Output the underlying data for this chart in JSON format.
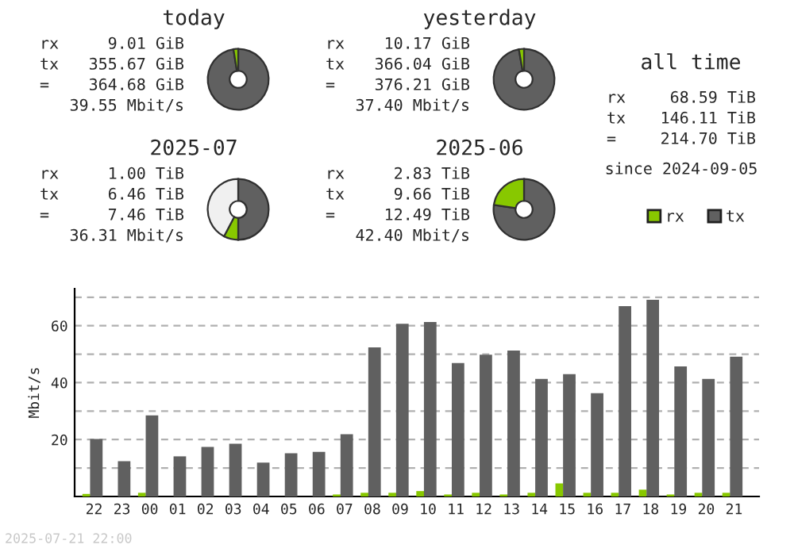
{
  "chart_data": [
    {
      "type": "donut",
      "title": "today",
      "categories": [
        null,
        null
      ],
      "values": [
        97.53,
        2.47
      ],
      "colors": [
        "#606060",
        "#88c800"
      ],
      "annotations": [
        "rx",
        "9.01 GiB",
        "tx",
        "355.67 GiB",
        "=",
        "364.68 GiB",
        "39.55 Mbit/s"
      ]
    },
    {
      "type": "donut",
      "title": "yesterday",
      "categories": [
        null,
        null
      ],
      "values": [
        97.3,
        2.7
      ],
      "colors": [
        "#606060",
        "#88c800"
      ],
      "annotations": [
        "rx",
        "10.17 GiB",
        "tx",
        "366.04 GiB",
        "=",
        "376.21 GiB",
        "37.40 Mbit/s"
      ]
    },
    {
      "type": "other",
      "title": "all time",
      "annotations": [
        "rx",
        "68.59 TiB",
        "tx",
        "146.11 TiB",
        "=",
        "214.70 TiB",
        "since 2024-09-05"
      ]
    },
    {
      "type": "donut",
      "title": "2025-07",
      "categories": [
        null,
        null,
        null
      ],
      "values": [
        50.0,
        7.7,
        42.3
      ],
      "colors": [
        "#606060",
        "#88c800",
        "#f0f0f0"
      ],
      "annotations": [
        "rx",
        "1.00 TiB",
        "tx",
        "6.46 TiB",
        "=",
        "7.46 TiB",
        "36.31 Mbit/s"
      ]
    },
    {
      "type": "donut",
      "title": "2025-06",
      "categories": [
        null,
        null
      ],
      "values": [
        77.34,
        22.66
      ],
      "colors": [
        "#606060",
        "#88c800"
      ],
      "annotations": [
        "rx",
        "2.83 TiB",
        "tx",
        "9.66 TiB",
        "=",
        "12.49 TiB",
        "42.40 Mbit/s"
      ]
    },
    {
      "type": "bar",
      "ylabel": "Mbit/s",
      "categories": [
        "22",
        "23",
        "00",
        "01",
        "02",
        "03",
        "04",
        "05",
        "06",
        "07",
        "08",
        "09",
        "10",
        "11",
        "12",
        "13",
        "14",
        "15",
        "16",
        "17",
        "18",
        "19",
        "20",
        "21"
      ],
      "series": [
        {
          "name": "rx",
          "color": "#88c800",
          "values": [
            0.9,
            0,
            1.3,
            0,
            0,
            0,
            0,
            0,
            0,
            0.7,
            1.3,
            1.3,
            1.9,
            0.7,
            1.3,
            0.7,
            1.3,
            4.6,
            1.3,
            1.3,
            2.4,
            0.7,
            1.3,
            1.3
          ]
        },
        {
          "name": "tx",
          "color": "#606060",
          "values": [
            20.2,
            12.4,
            28.5,
            14.1,
            17.4,
            18.5,
            11.9,
            15.2,
            15.7,
            21.9,
            52.4,
            60.7,
            61.3,
            46.9,
            49.8,
            51.3,
            41.3,
            43.0,
            36.3,
            66.9,
            69.1,
            45.7,
            41.3,
            49.1
          ]
        }
      ],
      "ylim": [
        0,
        73
      ],
      "yticks": [
        {
          "value": 10,
          "label": null
        },
        20,
        {
          "value": 30,
          "label": null
        },
        40,
        {
          "value": 50,
          "label": null
        },
        60,
        {
          "value": 70,
          "label": null
        }
      ],
      "grid": "y",
      "legend": "top right",
      "annotations": [
        "2025-07-21 22:00"
      ]
    }
  ]
}
